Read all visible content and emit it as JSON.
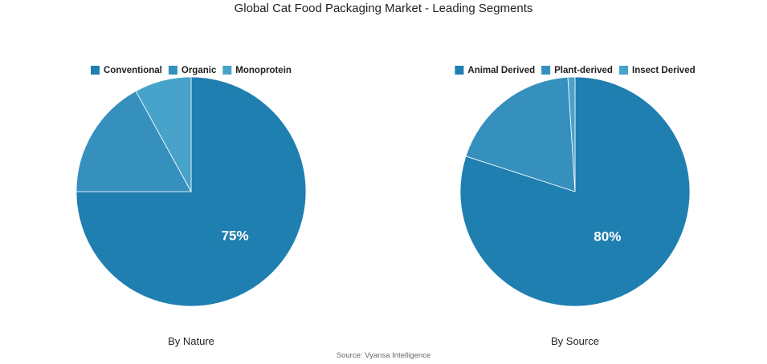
{
  "title": "Global Cat Food Packaging Market - Leading Segments",
  "source": "Source: Vyansa Intelligence",
  "chart_data": [
    {
      "type": "pie",
      "subtitle": "By Nature",
      "legend_position": "top",
      "slices": [
        {
          "name": "Conventional",
          "value": 75,
          "label": "75%",
          "color": "#1f7fb0"
        },
        {
          "name": "Organic",
          "value": 17,
          "label": "",
          "color": "#3590bd"
        },
        {
          "name": "Monoprotein",
          "value": 8,
          "label": "",
          "color": "#47a3c9"
        }
      ]
    },
    {
      "type": "pie",
      "subtitle": "By Source",
      "legend_position": "top",
      "slices": [
        {
          "name": "Animal Derived",
          "value": 80,
          "label": "80%",
          "color": "#1f7fb0"
        },
        {
          "name": "Plant-derived",
          "value": 19,
          "label": "",
          "color": "#3590bd"
        },
        {
          "name": "Insect Derived",
          "value": 1,
          "label": "",
          "color": "#47a3c9"
        }
      ]
    }
  ]
}
